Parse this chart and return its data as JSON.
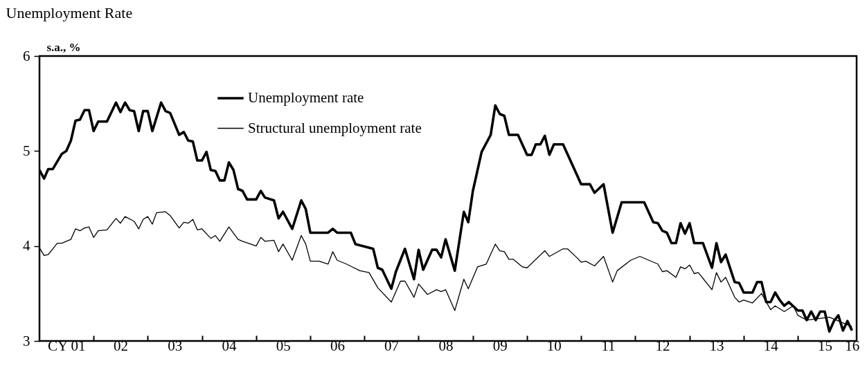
{
  "chart_data": {
    "type": "line",
    "title": "Unemployment Rate",
    "ylabel": "s.a., %",
    "ylim": [
      3,
      6
    ],
    "yticks": [
      3,
      4,
      5,
      6
    ],
    "xlim": [
      "2001-01-01",
      "2016-02-01"
    ],
    "xticks": [
      {
        "value": "2001-07-01",
        "label": "CY 01"
      },
      {
        "value": "2002-01-01",
        "label": null
      },
      {
        "value": "2002-07-01",
        "label": "02"
      },
      {
        "value": "2003-01-01",
        "label": null
      },
      {
        "value": "2003-07-01",
        "label": "03"
      },
      {
        "value": "2004-01-01",
        "label": null
      },
      {
        "value": "2004-07-01",
        "label": "04"
      },
      {
        "value": "2005-01-01",
        "label": null
      },
      {
        "value": "2005-07-01",
        "label": "05"
      },
      {
        "value": "2006-01-01",
        "label": null
      },
      {
        "value": "2006-07-01",
        "label": "06"
      },
      {
        "value": "2007-01-01",
        "label": null
      },
      {
        "value": "2007-07-01",
        "label": "07"
      },
      {
        "value": "2008-01-01",
        "label": null
      },
      {
        "value": "2008-07-01",
        "label": "08"
      },
      {
        "value": "2009-01-01",
        "label": null
      },
      {
        "value": "2009-07-01",
        "label": "09"
      },
      {
        "value": "2010-01-01",
        "label": null
      },
      {
        "value": "2010-07-01",
        "label": "10"
      },
      {
        "value": "2011-01-01",
        "label": null
      },
      {
        "value": "2011-07-01",
        "label": "11"
      },
      {
        "value": "2012-01-01",
        "label": null
      },
      {
        "value": "2012-07-01",
        "label": "12"
      },
      {
        "value": "2013-01-01",
        "label": null
      },
      {
        "value": "2013-07-01",
        "label": "13"
      },
      {
        "value": "2014-01-01",
        "label": null
      },
      {
        "value": "2014-07-01",
        "label": "14"
      },
      {
        "value": "2015-01-01",
        "label": null
      },
      {
        "value": "2015-07-01",
        "label": "15"
      },
      {
        "value": "2016-01-01",
        "label": "16"
      }
    ],
    "grid": false,
    "legend": "top left",
    "line_style": "solid",
    "marker": "none",
    "series": [
      {
        "name": "Unemployment rate",
        "color": "#000000",
        "x": [
          "2001-01",
          "2001-02",
          "2001-03",
          "2001-04",
          "2001-06",
          "2001-07",
          "2001-08",
          "2001-09",
          "2001-10",
          "2001-11",
          "2001-12",
          "2002-01",
          "2002-02",
          "2002-04",
          "2002-06",
          "2002-07",
          "2002-08",
          "2002-09",
          "2002-10",
          "2002-11",
          "2002-12",
          "2003-01",
          "2003-02",
          "2003-04",
          "2003-05",
          "2003-06",
          "2003-08",
          "2003-09",
          "2003-10",
          "2003-11",
          "2003-12",
          "2004-01",
          "2004-02",
          "2004-03",
          "2004-04",
          "2004-05",
          "2004-06",
          "2004-07",
          "2004-08",
          "2004-09",
          "2004-10",
          "2004-11",
          "2005-01",
          "2005-02",
          "2005-03",
          "2005-05",
          "2005-06",
          "2005-07",
          "2005-09",
          "2005-11",
          "2005-12",
          "2006-01",
          "2006-05",
          "2006-06",
          "2006-07",
          "2006-10",
          "2006-11",
          "2007-03",
          "2007-04",
          "2007-05",
          "2007-07",
          "2007-08",
          "2007-10",
          "2007-12",
          "2008-01",
          "2008-02",
          "2008-04",
          "2008-05",
          "2008-06",
          "2008-07",
          "2008-09",
          "2008-11",
          "2008-12",
          "2009-01",
          "2009-03",
          "2009-05",
          "2009-06",
          "2009-07",
          "2009-08",
          "2009-09",
          "2009-11",
          "2010-01",
          "2010-02",
          "2010-03",
          "2010-04",
          "2010-05",
          "2010-06",
          "2010-07",
          "2010-09",
          "2011-01",
          "2011-03",
          "2011-04",
          "2011-06",
          "2011-08",
          "2011-10",
          "2012-03",
          "2012-05",
          "2012-06",
          "2012-07",
          "2012-08",
          "2012-09",
          "2012-10",
          "2012-11",
          "2012-12",
          "2013-01",
          "2013-02",
          "2013-04",
          "2013-06",
          "2013-07",
          "2013-08",
          "2013-09",
          "2013-11",
          "2013-12",
          "2014-01",
          "2014-03",
          "2014-04",
          "2014-05",
          "2014-06",
          "2014-07",
          "2014-08",
          "2014-09",
          "2014-10",
          "2014-11",
          "2015-01",
          "2015-02",
          "2015-03",
          "2015-04",
          "2015-05",
          "2015-06",
          "2015-07",
          "2015-08",
          "2015-09",
          "2015-10",
          "2015-11",
          "2015-12",
          "2016-01"
        ],
        "values": [
          4.8,
          4.71,
          4.81,
          4.81,
          4.97,
          5.0,
          5.11,
          5.32,
          5.33,
          5.43,
          5.43,
          5.21,
          5.31,
          5.31,
          5.51,
          5.41,
          5.51,
          5.43,
          5.42,
          5.21,
          5.42,
          5.42,
          5.21,
          5.51,
          5.42,
          5.4,
          5.17,
          5.2,
          5.11,
          5.1,
          4.9,
          4.9,
          4.99,
          4.8,
          4.79,
          4.69,
          4.69,
          4.88,
          4.8,
          4.6,
          4.58,
          4.49,
          4.49,
          4.58,
          4.51,
          4.48,
          4.29,
          4.36,
          4.18,
          4.48,
          4.39,
          4.14,
          4.14,
          4.18,
          4.14,
          4.14,
          4.02,
          3.97,
          3.77,
          3.75,
          3.55,
          3.73,
          3.97,
          3.65,
          3.96,
          3.75,
          3.96,
          3.96,
          3.88,
          4.07,
          3.74,
          4.36,
          4.25,
          4.58,
          4.99,
          5.17,
          5.48,
          5.39,
          5.37,
          5.17,
          5.17,
          4.96,
          4.96,
          5.07,
          5.07,
          5.16,
          4.96,
          5.07,
          5.07,
          4.65,
          4.65,
          4.56,
          4.65,
          4.14,
          4.46,
          4.46,
          4.25,
          4.24,
          4.16,
          4.14,
          4.03,
          4.03,
          4.24,
          4.13,
          4.24,
          4.03,
          4.03,
          3.77,
          4.03,
          3.83,
          3.91,
          3.62,
          3.61,
          3.51,
          3.51,
          3.62,
          3.62,
          3.41,
          3.41,
          3.51,
          3.43,
          3.37,
          3.41,
          3.32,
          3.32,
          3.22,
          3.31,
          3.22,
          3.31,
          3.31,
          3.1,
          3.21,
          3.27,
          3.11,
          3.21,
          3.11
        ]
      },
      {
        "name": "Structural unemployment rate",
        "color": "#000000",
        "x": [
          "2001-01",
          "2001-02",
          "2001-03",
          "2001-04",
          "2001-05",
          "2001-06",
          "2001-08",
          "2001-09",
          "2001-10",
          "2001-11",
          "2001-12",
          "2002-01",
          "2002-02",
          "2002-04",
          "2002-06",
          "2002-07",
          "2002-08",
          "2002-10",
          "2002-11",
          "2002-12",
          "2003-01",
          "2003-02",
          "2003-03",
          "2003-05",
          "2003-06",
          "2003-08",
          "2003-09",
          "2003-10",
          "2003-11",
          "2003-12",
          "2004-01",
          "2004-03",
          "2004-04",
          "2004-05",
          "2004-07",
          "2004-09",
          "2004-10",
          "2005-01",
          "2005-02",
          "2005-03",
          "2005-05",
          "2005-06",
          "2005-07",
          "2005-09",
          "2005-11",
          "2005-12",
          "2006-01",
          "2006-03",
          "2006-05",
          "2006-06",
          "2006-07",
          "2006-09",
          "2006-12",
          "2007-02",
          "2007-04",
          "2007-07",
          "2007-09",
          "2007-10",
          "2007-12",
          "2008-01",
          "2008-03",
          "2008-05",
          "2008-06",
          "2008-07",
          "2008-09",
          "2008-11",
          "2008-12",
          "2009-02",
          "2009-04",
          "2009-06",
          "2009-07",
          "2009-08",
          "2009-09",
          "2009-10",
          "2009-12",
          "2010-01",
          "2010-05",
          "2010-06",
          "2010-09",
          "2010-10",
          "2010-12",
          "2011-01",
          "2011-02",
          "2011-04",
          "2011-06",
          "2011-08",
          "2011-09",
          "2011-12",
          "2012-02",
          "2012-05",
          "2012-06",
          "2012-07",
          "2012-08",
          "2012-10",
          "2012-11",
          "2012-12",
          "2013-01",
          "2013-02",
          "2013-03",
          "2013-06",
          "2013-07",
          "2013-08",
          "2013-09",
          "2013-11",
          "2013-12",
          "2014-01",
          "2014-03",
          "2014-05",
          "2014-07",
          "2014-08",
          "2014-10",
          "2014-12",
          "2015-01",
          "2015-03",
          "2015-08",
          "2016-01"
        ],
        "values": [
          3.98,
          3.9,
          3.91,
          3.97,
          4.03,
          4.03,
          4.07,
          4.18,
          4.16,
          4.19,
          4.2,
          4.09,
          4.16,
          4.17,
          4.29,
          4.24,
          4.31,
          4.26,
          4.18,
          4.28,
          4.31,
          4.23,
          4.35,
          4.36,
          4.32,
          4.19,
          4.25,
          4.24,
          4.28,
          4.17,
          4.18,
          4.08,
          4.11,
          4.05,
          4.2,
          4.07,
          4.05,
          4.0,
          4.09,
          4.05,
          4.06,
          3.94,
          4.02,
          3.85,
          4.11,
          4.02,
          3.84,
          3.84,
          3.81,
          3.94,
          3.85,
          3.81,
          3.74,
          3.72,
          3.56,
          3.41,
          3.63,
          3.63,
          3.46,
          3.6,
          3.49,
          3.54,
          3.52,
          3.54,
          3.32,
          3.65,
          3.55,
          3.78,
          3.81,
          4.02,
          3.95,
          3.94,
          3.86,
          3.86,
          3.78,
          3.77,
          3.95,
          3.89,
          3.97,
          3.97,
          3.88,
          3.83,
          3.84,
          3.79,
          3.89,
          3.62,
          3.74,
          3.85,
          3.89,
          3.83,
          3.81,
          3.73,
          3.74,
          3.67,
          3.78,
          3.76,
          3.8,
          3.71,
          3.72,
          3.54,
          3.72,
          3.62,
          3.67,
          3.46,
          3.41,
          3.43,
          3.4,
          3.5,
          3.33,
          3.37,
          3.31,
          3.37,
          3.27,
          3.22,
          3.25,
          3.15
        ]
      }
    ]
  }
}
